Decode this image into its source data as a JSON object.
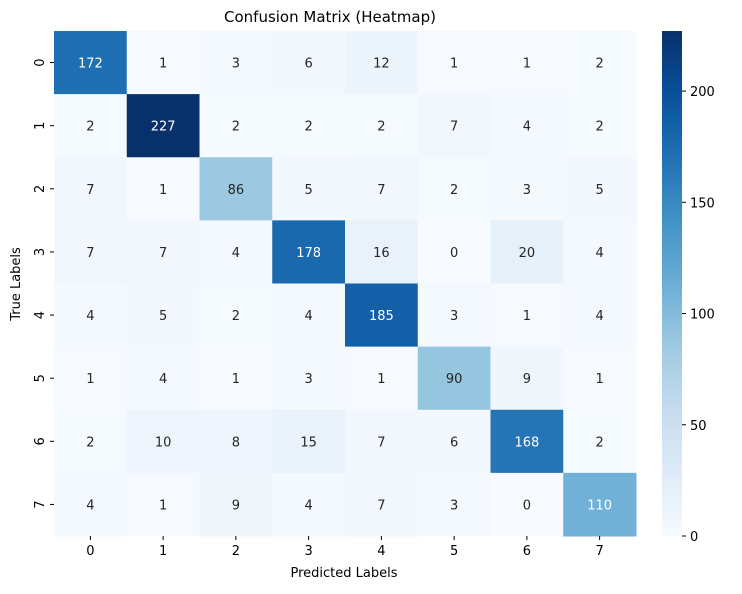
{
  "chart_data": {
    "type": "heatmap",
    "title": "Confusion Matrix (Heatmap)",
    "xlabel": "Predicted Labels",
    "ylabel": "True Labels",
    "x_categories": [
      "0",
      "1",
      "2",
      "3",
      "4",
      "5",
      "6",
      "7"
    ],
    "y_categories": [
      "0",
      "1",
      "2",
      "3",
      "4",
      "5",
      "6",
      "7"
    ],
    "values": [
      [
        172,
        1,
        3,
        6,
        12,
        1,
        1,
        2
      ],
      [
        2,
        227,
        2,
        2,
        2,
        7,
        4,
        2
      ],
      [
        7,
        1,
        86,
        5,
        7,
        2,
        3,
        5
      ],
      [
        7,
        7,
        4,
        178,
        16,
        0,
        20,
        4
      ],
      [
        4,
        5,
        2,
        4,
        185,
        3,
        1,
        4
      ],
      [
        1,
        4,
        1,
        3,
        1,
        90,
        9,
        1
      ],
      [
        2,
        10,
        8,
        15,
        7,
        6,
        168,
        2
      ],
      [
        4,
        1,
        9,
        4,
        7,
        3,
        0,
        110
      ]
    ],
    "colormap": "Blues",
    "value_range": [
      0,
      227
    ],
    "colorbar_ticks": [
      "0",
      "50",
      "100",
      "150",
      "200"
    ],
    "annotations": true,
    "grid": false
  },
  "colors": {
    "dark_text": "#262626",
    "light_text": "#ffffff",
    "axis": "#000000"
  }
}
